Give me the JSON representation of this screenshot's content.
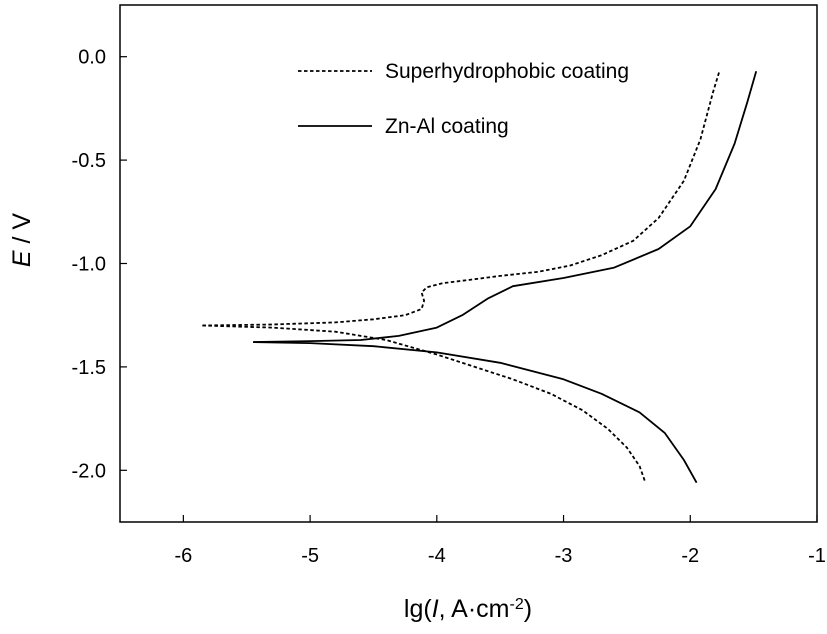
{
  "chart_data": {
    "type": "line",
    "title": "",
    "xlabel": "lg(I, A·cm^-2)",
    "ylabel": "E / V",
    "xlabel_parts": {
      "prefix": "lg(",
      "italic": "I",
      "mid": ", A·cm",
      "sup": "-2",
      "suffix": ")"
    },
    "ylabel_parts": {
      "italic": "E",
      "rest": " / V"
    },
    "xlim": [
      -6.5,
      -1
    ],
    "ylim": [
      -2.25,
      0.25
    ],
    "xticks": [
      -6,
      -5,
      -4,
      -3,
      -2,
      -1
    ],
    "xtick_labels": [
      "-6",
      "-5",
      "-4",
      "-3",
      "-2",
      "-1"
    ],
    "yticks": [
      0,
      -0.5,
      -1,
      -1.5,
      -2
    ],
    "ytick_labels": [
      "0.0",
      "-0.5",
      "-1.0",
      "-1.5",
      "-2.0"
    ],
    "grid": false,
    "legend_position": "top-right",
    "series": [
      {
        "name": "Superhydrophobic coating",
        "style": "dotted",
        "color": "#000000",
        "anodic": [
          [
            -5.85,
            -1.3
          ],
          [
            -5.3,
            -1.295
          ],
          [
            -4.8,
            -1.285
          ],
          [
            -4.5,
            -1.27
          ],
          [
            -4.25,
            -1.25
          ],
          [
            -4.12,
            -1.22
          ],
          [
            -4.1,
            -1.18
          ],
          [
            -4.12,
            -1.14
          ],
          [
            -4.08,
            -1.115
          ],
          [
            -3.95,
            -1.095
          ],
          [
            -3.75,
            -1.08
          ],
          [
            -3.5,
            -1.06
          ],
          [
            -3.2,
            -1.04
          ],
          [
            -2.95,
            -1.01
          ],
          [
            -2.7,
            -0.96
          ],
          [
            -2.45,
            -0.89
          ],
          [
            -2.25,
            -0.78
          ],
          [
            -2.05,
            -0.6
          ],
          [
            -1.92,
            -0.4
          ],
          [
            -1.82,
            -0.17
          ],
          [
            -1.77,
            -0.07
          ]
        ],
        "cathodic": [
          [
            -5.85,
            -1.3
          ],
          [
            -5.3,
            -1.31
          ],
          [
            -4.8,
            -1.33
          ],
          [
            -4.4,
            -1.37
          ],
          [
            -4.0,
            -1.44
          ],
          [
            -3.7,
            -1.5
          ],
          [
            -3.4,
            -1.56
          ],
          [
            -3.1,
            -1.63
          ],
          [
            -2.85,
            -1.71
          ],
          [
            -2.65,
            -1.8
          ],
          [
            -2.5,
            -1.89
          ],
          [
            -2.4,
            -1.98
          ],
          [
            -2.36,
            -2.05
          ]
        ]
      },
      {
        "name": "Zn-Al coating",
        "style": "solid",
        "color": "#000000",
        "anodic": [
          [
            -5.45,
            -1.38
          ],
          [
            -5.0,
            -1.375
          ],
          [
            -4.6,
            -1.37
          ],
          [
            -4.3,
            -1.35
          ],
          [
            -4.0,
            -1.31
          ],
          [
            -3.8,
            -1.25
          ],
          [
            -3.6,
            -1.17
          ],
          [
            -3.4,
            -1.11
          ],
          [
            -3.0,
            -1.07
          ],
          [
            -2.6,
            -1.02
          ],
          [
            -2.25,
            -0.93
          ],
          [
            -2.0,
            -0.82
          ],
          [
            -1.8,
            -0.64
          ],
          [
            -1.65,
            -0.42
          ],
          [
            -1.55,
            -0.22
          ],
          [
            -1.48,
            -0.07
          ]
        ],
        "cathodic": [
          [
            -5.45,
            -1.38
          ],
          [
            -5.0,
            -1.385
          ],
          [
            -4.5,
            -1.4
          ],
          [
            -4.0,
            -1.43
          ],
          [
            -3.5,
            -1.48
          ],
          [
            -3.0,
            -1.56
          ],
          [
            -2.7,
            -1.63
          ],
          [
            -2.4,
            -1.72
          ],
          [
            -2.2,
            -1.82
          ],
          [
            -2.05,
            -1.95
          ],
          [
            -1.95,
            -2.06
          ]
        ]
      }
    ]
  }
}
